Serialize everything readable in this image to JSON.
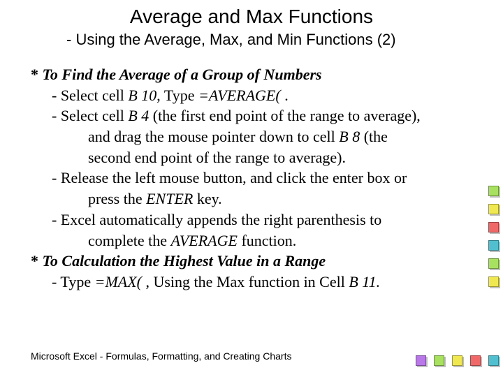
{
  "title": "Average and Max Functions",
  "subtitle_dash": "-",
  "subtitle_text": " Using the Average, Max, and Min Functions (2)",
  "section1_star": "*",
  "section1_heading": " To Find the Average of a Group of Numbers",
  "s1_b1a": "- Select cell ",
  "s1_b1b": "B 10",
  "s1_b1c": ", Type ",
  "s1_b1d": "=AVERAGE(",
  "s1_b1e": " .",
  "s1_b2a": "- Select cell ",
  "s1_b2b": "B 4",
  "s1_b2c": " (the first end point of the range to average),",
  "s1_b2_c1a": "and drag the mouse pointer down to cell ",
  "s1_b2_c1b": "B 8",
  "s1_b2_c1c": " (the",
  "s1_b2_c2": "second end point of the range to average).",
  "s1_b3": "- Release the left mouse button, and click the enter box or",
  "s1_b3_c1a": "press the ",
  "s1_b3_c1b": "ENTER",
  "s1_b3_c1c": " key.",
  "s1_b4": "-  Excel automatically appends the right parenthesis to",
  "s1_b4_c1a": "complete the ",
  "s1_b4_c1b": "AVERAGE",
  "s1_b4_c1c": " function.",
  "section2_star": "*",
  "section2_heading": " To Calculation the Highest Value in a Range",
  "s2_b1a": "- Type ",
  "s2_b1b": "=MAX(",
  "s2_b1c": " , Using the Max function in Cell ",
  "s2_b1d": "B 11.",
  "footer": "Microsoft  Excel - Formulas, Formatting, and Creating Charts",
  "colors": {
    "right": [
      "#a8e060",
      "#f0e850",
      "#f06868",
      "#50c0d0",
      "#a8e060",
      "#f0e850"
    ],
    "bottom": [
      "#b878e8",
      "#a8e060",
      "#f0e850",
      "#f06868",
      "#50c0d0"
    ]
  }
}
